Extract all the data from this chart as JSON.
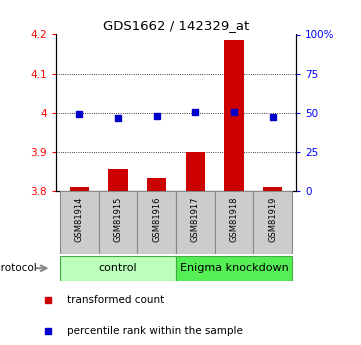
{
  "title": "GDS1662 / 142329_at",
  "samples": [
    "GSM81914",
    "GSM81915",
    "GSM81916",
    "GSM81917",
    "GSM81918",
    "GSM81919"
  ],
  "red_values": [
    3.812,
    3.858,
    3.835,
    3.9,
    4.185,
    3.812
  ],
  "blue_values": [
    49.5,
    47.0,
    48.0,
    50.5,
    50.5,
    47.5
  ],
  "red_base": 3.8,
  "ylim_left": [
    3.8,
    4.2
  ],
  "ylim_right": [
    0,
    100
  ],
  "yticks_left": [
    3.8,
    3.9,
    4.0,
    4.1,
    4.2
  ],
  "ytick_labels_left": [
    "3.8",
    "3.9",
    "4",
    "4.1",
    "4.2"
  ],
  "yticks_right": [
    0,
    25,
    50,
    75,
    100
  ],
  "ytick_labels_right": [
    "0",
    "25",
    "50",
    "75",
    "100%"
  ],
  "gridlines_at": [
    3.9,
    4.0,
    4.1
  ],
  "bar_color": "#cc0000",
  "dot_color": "#0000cc",
  "sample_box_color": "#cccccc",
  "sample_box_edge": "#888888",
  "control_color": "#bbffbb",
  "enigma_color": "#55ee55",
  "group_edge": "#44aa44",
  "legend_items": [
    {
      "label": "transformed count",
      "color": "#cc0000"
    },
    {
      "label": "percentile rank within the sample",
      "color": "#0000cc"
    }
  ]
}
